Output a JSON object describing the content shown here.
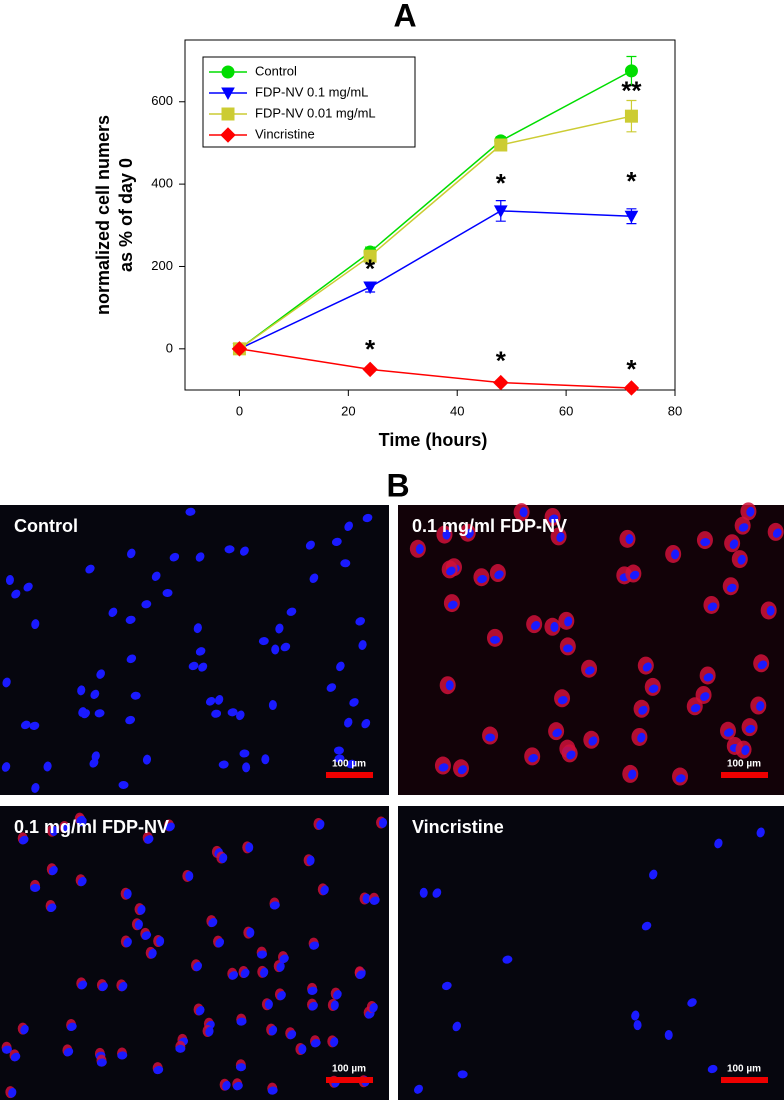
{
  "chart_data": {
    "type": "line",
    "panel_label": "A",
    "xlabel": "Time (hours)",
    "ylabel": [
      "normalized cell numers",
      "as % of day 0"
    ],
    "xlim": [
      -10,
      80
    ],
    "xticks": [
      0,
      20,
      40,
      60,
      80
    ],
    "ylim": [
      -100,
      750
    ],
    "yticks": [
      0,
      200,
      400,
      600
    ],
    "x": [
      0,
      24,
      48,
      72
    ],
    "legend": "upper left",
    "series": [
      {
        "name": "Control",
        "color": "#00dd00",
        "marker": "circle",
        "values": [
          0,
          235,
          505,
          675
        ],
        "errors": [
          0,
          12,
          10,
          35
        ]
      },
      {
        "name": "FDP-NV 0.1 mg/mL",
        "color": "#0000ff",
        "marker": "triangle-down",
        "values": [
          0,
          150,
          335,
          322
        ],
        "errors": [
          0,
          12,
          25,
          18
        ]
      },
      {
        "name": "FDP-NV 0.01 mg/mL",
        "color": "#cccc33",
        "marker": "square",
        "values": [
          0,
          225,
          495,
          565
        ],
        "errors": [
          0,
          10,
          8,
          38
        ]
      },
      {
        "name": "Vincristine",
        "color": "#ff0000",
        "marker": "diamond",
        "values": [
          0,
          -50,
          -82,
          -95
        ],
        "errors": [
          0,
          5,
          5,
          5
        ]
      }
    ],
    "annotations": [
      {
        "text": "*",
        "x": 24,
        "y": 190
      },
      {
        "text": "*",
        "x": 24,
        "y": -5
      },
      {
        "text": "*",
        "x": 48,
        "y": 398
      },
      {
        "text": "*",
        "x": 48,
        "y": -34
      },
      {
        "text": "*",
        "x": 72,
        "y": 402
      },
      {
        "text": "**",
        "x": 72,
        "y": 622
      },
      {
        "text": "*",
        "x": 72,
        "y": -54
      }
    ]
  },
  "figure": {
    "panel_label": "B",
    "images": [
      {
        "label": "Control",
        "scale_bar": "100 µm"
      },
      {
        "label": "0.1 mg/ml FDP-NV",
        "scale_bar": "100 µm"
      },
      {
        "label": "0.1 mg/ml FDP-NV",
        "scale_bar": "100 µm"
      },
      {
        "label": "Vincristine",
        "scale_bar": "100 µm"
      }
    ]
  }
}
